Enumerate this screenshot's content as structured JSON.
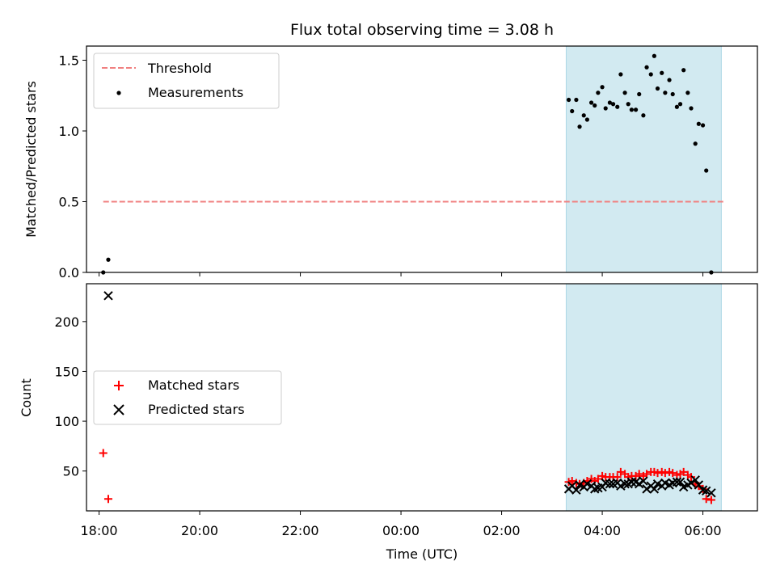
{
  "chart_data": [
    {
      "type": "scatter",
      "title": "Flux total observing time = 3.08 h",
      "xlabel": "",
      "ylabel": "Matched/Predicted stars",
      "xlim": [
        "17:45",
        "07:05"
      ],
      "ylim": [
        0,
        1.6
      ],
      "yticks": [
        0.0,
        0.5,
        1.0,
        1.5
      ],
      "ytick_labels": [
        "0.0",
        "0.5",
        "1.0",
        "1.5"
      ],
      "shaded_region": {
        "x": [
          "03:17",
          "06:22"
        ],
        "color": "#add8e6"
      },
      "legend_position": "upper left",
      "grid": false,
      "series": [
        {
          "name": "Threshold",
          "kind": "line",
          "style": "dashed",
          "color": "#f08080",
          "x": [
            "18:05",
            "06:25"
          ],
          "y": [
            0.5,
            0.5
          ]
        },
        {
          "name": "Measurements",
          "kind": "scatter",
          "color": "#000000",
          "points": [
            [
              "18:05",
              0.0
            ],
            [
              "18:11",
              0.09
            ],
            [
              "03:20",
              1.22
            ],
            [
              "03:24",
              1.14
            ],
            [
              "03:29",
              1.22
            ],
            [
              "03:33",
              1.03
            ],
            [
              "03:38",
              1.11
            ],
            [
              "03:42",
              1.08
            ],
            [
              "03:47",
              1.2
            ],
            [
              "03:51",
              1.18
            ],
            [
              "03:55",
              1.27
            ],
            [
              "04:00",
              1.31
            ],
            [
              "04:04",
              1.16
            ],
            [
              "04:09",
              1.2
            ],
            [
              "04:13",
              1.19
            ],
            [
              "04:18",
              1.17
            ],
            [
              "04:22",
              1.4
            ],
            [
              "04:27",
              1.27
            ],
            [
              "04:31",
              1.19
            ],
            [
              "04:35",
              1.15
            ],
            [
              "04:40",
              1.15
            ],
            [
              "04:44",
              1.26
            ],
            [
              "04:49",
              1.11
            ],
            [
              "04:53",
              1.45
            ],
            [
              "04:58",
              1.4
            ],
            [
              "05:02",
              1.53
            ],
            [
              "05:06",
              1.3
            ],
            [
              "05:11",
              1.41
            ],
            [
              "05:15",
              1.27
            ],
            [
              "05:20",
              1.36
            ],
            [
              "05:24",
              1.26
            ],
            [
              "05:29",
              1.17
            ],
            [
              "05:33",
              1.19
            ],
            [
              "05:37",
              1.43
            ],
            [
              "05:42",
              1.27
            ],
            [
              "05:46",
              1.16
            ],
            [
              "05:51",
              0.91
            ],
            [
              "05:55",
              1.05
            ],
            [
              "06:00",
              1.04
            ],
            [
              "06:04",
              0.72
            ],
            [
              "06:10",
              0.0
            ]
          ]
        }
      ]
    },
    {
      "type": "scatter",
      "title": "",
      "xlabel": "Time (UTC)",
      "ylabel": "Count",
      "xlim": [
        "17:45",
        "07:05"
      ],
      "ylim": [
        10,
        238
      ],
      "yticks": [
        50,
        100,
        150,
        200
      ],
      "ytick_labels": [
        "50",
        "100",
        "150",
        "200"
      ],
      "xticks": [
        "18:00",
        "20:00",
        "22:00",
        "00:00",
        "02:00",
        "04:00",
        "06:00"
      ],
      "xtick_labels": [
        "18:00",
        "20:00",
        "22:00",
        "00:00",
        "02:00",
        "04:00",
        "06:00"
      ],
      "shaded_region": {
        "x": [
          "03:17",
          "06:22"
        ],
        "color": "#add8e6"
      },
      "legend_position": "center left",
      "grid": false,
      "series": [
        {
          "name": "Matched stars",
          "kind": "scatter",
          "marker": "+",
          "color": "#ff0000",
          "points": [
            [
              "18:05",
              68
            ],
            [
              "18:11",
              22
            ],
            [
              "03:20",
              39
            ],
            [
              "03:24",
              40
            ],
            [
              "03:29",
              38
            ],
            [
              "03:33",
              37
            ],
            [
              "03:38",
              38
            ],
            [
              "03:42",
              40
            ],
            [
              "03:47",
              42
            ],
            [
              "03:51",
              40
            ],
            [
              "03:55",
              42
            ],
            [
              "04:00",
              45
            ],
            [
              "04:04",
              44
            ],
            [
              "04:09",
              44
            ],
            [
              "04:13",
              44
            ],
            [
              "04:18",
              44
            ],
            [
              "04:22",
              49
            ],
            [
              "04:27",
              47
            ],
            [
              "04:31",
              44
            ],
            [
              "04:35",
              45
            ],
            [
              "04:40",
              45
            ],
            [
              "04:44",
              47
            ],
            [
              "04:49",
              45
            ],
            [
              "04:53",
              47
            ],
            [
              "04:58",
              49
            ],
            [
              "05:02",
              49
            ],
            [
              "05:06",
              48
            ],
            [
              "05:11",
              49
            ],
            [
              "05:15",
              48
            ],
            [
              "05:20",
              49
            ],
            [
              "05:24",
              48
            ],
            [
              "05:29",
              46
            ],
            [
              "05:33",
              47
            ],
            [
              "05:37",
              49
            ],
            [
              "05:42",
              46
            ],
            [
              "05:46",
              44
            ],
            [
              "05:51",
              37
            ],
            [
              "05:55",
              35
            ],
            [
              "06:00",
              32
            ],
            [
              "06:04",
              22
            ],
            [
              "06:10",
              21
            ]
          ]
        },
        {
          "name": "Predicted stars",
          "kind": "scatter",
          "marker": "x",
          "color": "#000000",
          "points": [
            [
              "18:11",
              226
            ],
            [
              "03:20",
              32
            ],
            [
              "03:24",
              35
            ],
            [
              "03:29",
              31
            ],
            [
              "03:33",
              36
            ],
            [
              "03:38",
              34
            ],
            [
              "03:42",
              37
            ],
            [
              "03:47",
              35
            ],
            [
              "03:51",
              32
            ],
            [
              "03:55",
              33
            ],
            [
              "04:00",
              34
            ],
            [
              "04:04",
              38
            ],
            [
              "04:09",
              37
            ],
            [
              "04:13",
              37
            ],
            [
              "04:18",
              38
            ],
            [
              "04:22",
              35
            ],
            [
              "04:27",
              37
            ],
            [
              "04:31",
              37
            ],
            [
              "04:35",
              39
            ],
            [
              "04:40",
              39
            ],
            [
              "04:44",
              37
            ],
            [
              "04:49",
              40
            ],
            [
              "04:53",
              32
            ],
            [
              "04:58",
              35
            ],
            [
              "05:02",
              32
            ],
            [
              "05:06",
              37
            ],
            [
              "05:11",
              35
            ],
            [
              "05:15",
              38
            ],
            [
              "05:20",
              36
            ],
            [
              "05:24",
              38
            ],
            [
              "05:29",
              39
            ],
            [
              "05:33",
              39
            ],
            [
              "05:37",
              34
            ],
            [
              "05:42",
              36
            ],
            [
              "05:46",
              38
            ],
            [
              "05:51",
              41
            ],
            [
              "05:55",
              36
            ],
            [
              "06:00",
              31
            ],
            [
              "06:04",
              30
            ],
            [
              "06:10",
              28
            ]
          ]
        }
      ]
    }
  ]
}
